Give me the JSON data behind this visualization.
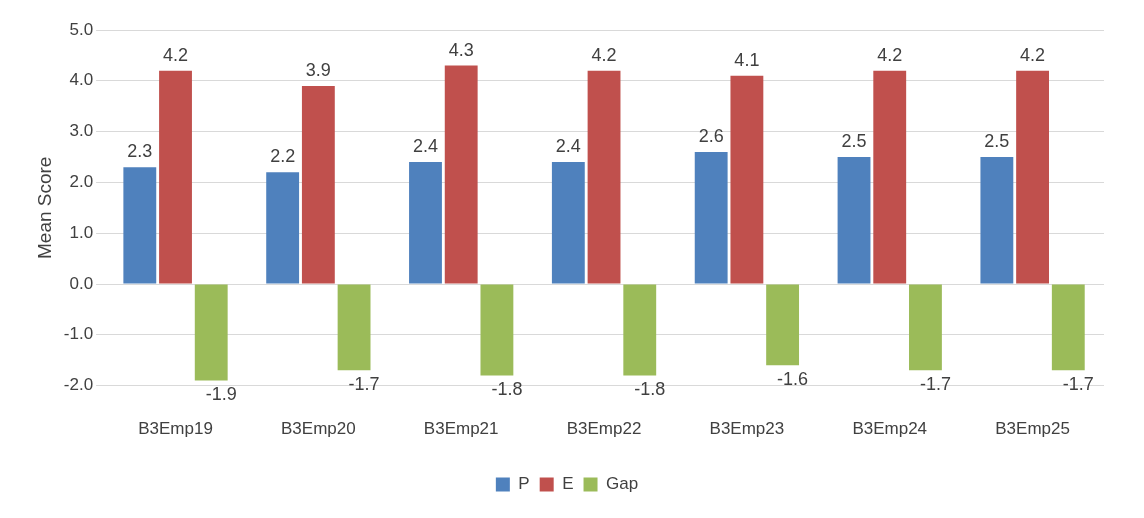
{
  "chart_data": {
    "type": "bar",
    "ylabel": "Mean Score",
    "categories": [
      "B3Emp19",
      "B3Emp20",
      "B3Emp21",
      "B3Emp22",
      "B3Emp23",
      "B3Emp24",
      "B3Emp25"
    ],
    "series": [
      {
        "name": "P",
        "color": "#4f81bd",
        "values": [
          2.3,
          2.2,
          2.4,
          2.4,
          2.6,
          2.5,
          2.5
        ]
      },
      {
        "name": "E",
        "color": "#c0504d",
        "values": [
          4.2,
          3.9,
          4.3,
          4.2,
          4.1,
          4.2,
          4.2
        ]
      },
      {
        "name": "Gap",
        "color": "#9bbb59",
        "values": [
          -1.9,
          -1.7,
          -1.8,
          -1.8,
          -1.6,
          -1.7,
          -1.7
        ]
      }
    ],
    "ylim": [
      -2,
      5
    ],
    "yticks": [
      {
        "value": -2,
        "label": "-2.0"
      },
      {
        "value": -1,
        "label": "-1.0"
      },
      {
        "value": 0,
        "label": "0.0"
      },
      {
        "value": 1,
        "label": "1.0"
      },
      {
        "value": 2,
        "label": "2.0"
      },
      {
        "value": 3,
        "label": "3.0"
      },
      {
        "value": 4,
        "label": "4.0"
      },
      {
        "value": 5,
        "label": "5.0"
      }
    ],
    "grid": "y",
    "legend": "bottom",
    "data_labels": true
  }
}
